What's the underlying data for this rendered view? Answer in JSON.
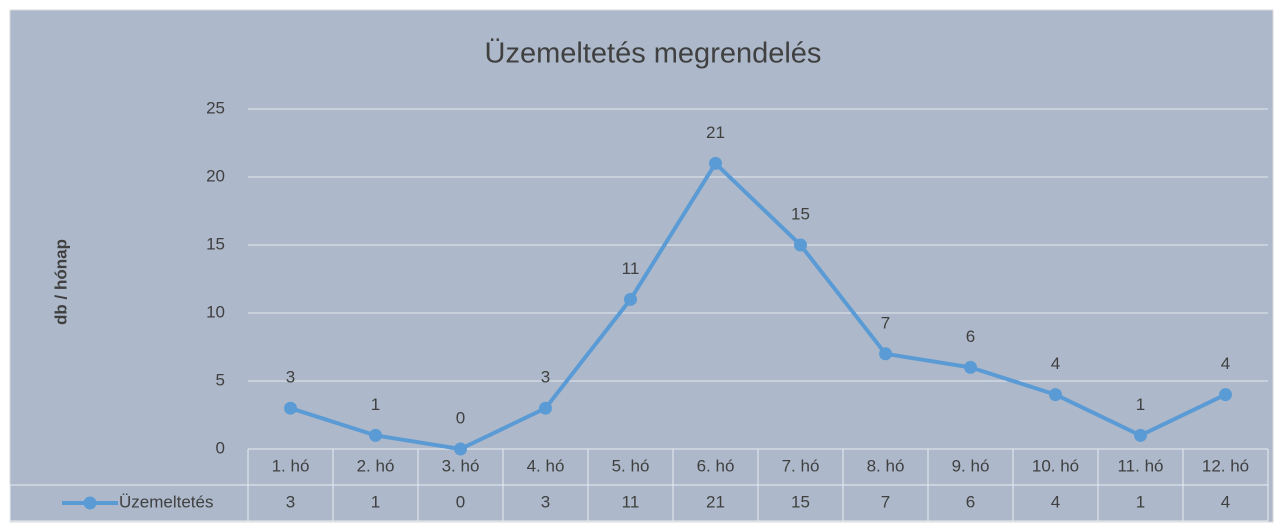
{
  "chart_data": {
    "type": "line",
    "title": "Üzemeltetés megrendelés",
    "y_label": "db / hónap",
    "categories": [
      "1. hó",
      "2. hó",
      "3. hó",
      "4. hó",
      "5. hó",
      "6. hó",
      "7. hó",
      "8. hó",
      "9. hó",
      "10. hó",
      "11. hó",
      "12. hó"
    ],
    "series": [
      {
        "name": "Üzemeltetés",
        "color": "#5b9bd5",
        "values": [
          3,
          1,
          0,
          3,
          11,
          21,
          15,
          7,
          6,
          4,
          1,
          4
        ]
      }
    ],
    "ylim": [
      0,
      25
    ],
    "yticks": [
      0,
      5,
      10,
      15,
      20,
      25
    ],
    "grid": true,
    "data_table": true
  }
}
